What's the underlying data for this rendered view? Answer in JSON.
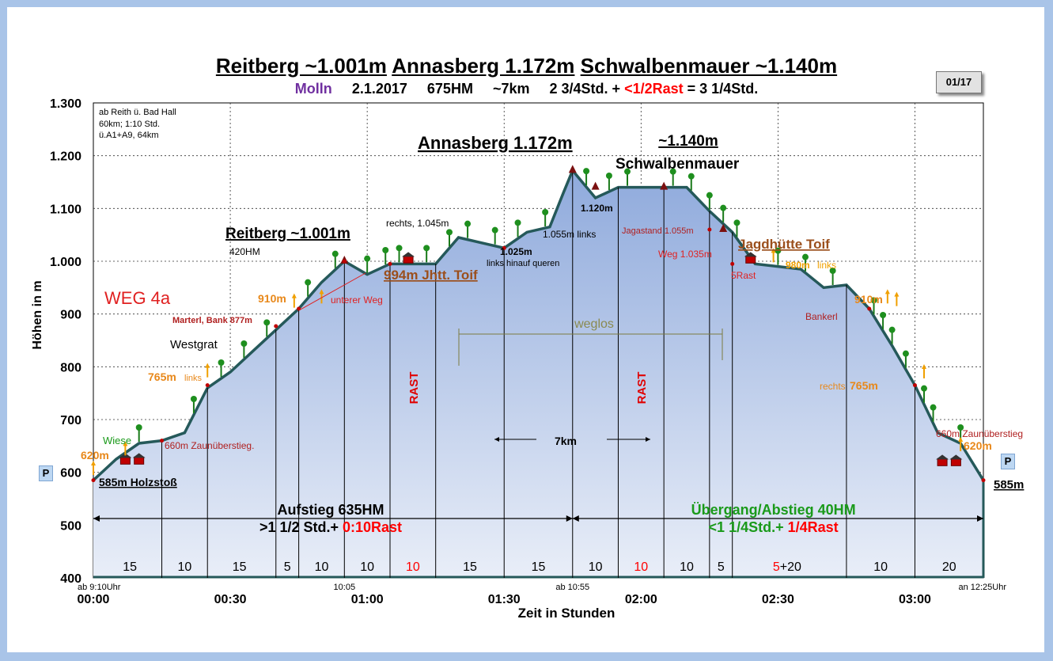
{
  "header": {
    "title_parts": [
      "Reitberg ~1.001m",
      "Annasberg 1.172m",
      "Schwalbenmauer ~1.140m"
    ],
    "place": "Molln",
    "date": "2.1.2017",
    "hm": "675HM",
    "dist": "~7km",
    "time": "2 3/4Std. +",
    "rest": "<1/2Rast",
    "total": "= 3 1/4Std.",
    "page": "01/17",
    "parking": "P",
    "title_color": "#000000",
    "place_color": "#7030a0",
    "rest_color": "#ff0000"
  },
  "chart_data": {
    "type": "area",
    "title": "",
    "xlabel": "Zeit in Stunden",
    "ylabel": "Höhen in m",
    "xlim": [
      0,
      195
    ],
    "ylim": [
      400,
      1300
    ],
    "grid": true,
    "xticks": [
      {
        "v": 0,
        "label": "00:00"
      },
      {
        "v": 30,
        "label": "00:30"
      },
      {
        "v": 60,
        "label": "01:00"
      },
      {
        "v": 90,
        "label": "01:30"
      },
      {
        "v": 120,
        "label": "02:00"
      },
      {
        "v": 150,
        "label": "02:30"
      },
      {
        "v": 180,
        "label": "03:00"
      }
    ],
    "yticks": [
      {
        "v": 400,
        "label": "400"
      },
      {
        "v": 500,
        "label": "500"
      },
      {
        "v": 600,
        "label": "600"
      },
      {
        "v": 700,
        "label": "700"
      },
      {
        "v": 800,
        "label": "800"
      },
      {
        "v": 900,
        "label": "900"
      },
      {
        "v": 1000,
        "label": "1.000"
      },
      {
        "v": 1100,
        "label": "1.100"
      },
      {
        "v": 1200,
        "label": "1.200"
      },
      {
        "v": 1300,
        "label": "1.300"
      }
    ],
    "profile": {
      "x": [
        0,
        5,
        10,
        15,
        20,
        25,
        30,
        35,
        40,
        45,
        50,
        55,
        60,
        65,
        70,
        75,
        80,
        85,
        90,
        95,
        100,
        103,
        105,
        110,
        115,
        120,
        125,
        130,
        135,
        140,
        145,
        150,
        155,
        160,
        165,
        170,
        175,
        180,
        185,
        190,
        195
      ],
      "y": [
        585,
        625,
        655,
        660,
        675,
        760,
        790,
        830,
        870,
        910,
        960,
        1000,
        975,
        995,
        995,
        995,
        1045,
        1035,
        1025,
        1055,
        1065,
        1130,
        1172,
        1120,
        1140,
        1140,
        1140,
        1140,
        1095,
        1055,
        995,
        990,
        985,
        950,
        955,
        910,
        840,
        765,
        675,
        655,
        585
      ]
    },
    "vlines": [
      15,
      25,
      40,
      45,
      55,
      65,
      75,
      90,
      105,
      115,
      125,
      135,
      140,
      165,
      180
    ],
    "segment_times": [
      {
        "x": 8,
        "label": "15",
        "color": "#000000"
      },
      {
        "x": 20,
        "label": "10",
        "color": "#000000"
      },
      {
        "x": 32,
        "label": "15",
        "color": "#000000"
      },
      {
        "x": 42.5,
        "label": "5",
        "color": "#000000"
      },
      {
        "x": 50,
        "label": "10",
        "color": "#000000"
      },
      {
        "x": 60,
        "label": "10",
        "color": "#000000"
      },
      {
        "x": 70,
        "label": "10",
        "color": "#ff0000"
      },
      {
        "x": 82.5,
        "label": "15",
        "color": "#000000"
      },
      {
        "x": 97.5,
        "label": "15",
        "color": "#000000"
      },
      {
        "x": 110,
        "label": "10",
        "color": "#000000"
      },
      {
        "x": 120,
        "label": "10",
        "color": "#ff0000"
      },
      {
        "x": 130,
        "label": "10",
        "color": "#000000"
      },
      {
        "x": 137.5,
        "label": "5",
        "color": "#000000"
      },
      {
        "x": 172.5,
        "label": "10",
        "color": "#000000"
      },
      {
        "x": 187.5,
        "label": "20",
        "color": "#000000"
      }
    ],
    "rest_plus": {
      "rest": "5",
      "plus": "+20",
      "x": 152
    },
    "time_marks": [
      {
        "x": 0,
        "label": "ab 9:10Uhr"
      },
      {
        "x": 55,
        "label": "10:05"
      },
      {
        "x": 105,
        "label": "ab 10:55"
      },
      {
        "x": 195,
        "label": "an 12:25Uhr"
      }
    ],
    "summary_left": {
      "l1": "Aufstieg 635HM",
      "l2a": ">1 1/2 Std.+ ",
      "l2b": "0:10Rast"
    },
    "summary_right": {
      "l1": "Übergang/Abstieg 40HM",
      "l2a": "<1 1/4Std.+ ",
      "l2b": "1/4Rast"
    },
    "distance": "7km",
    "weglos": "weglos",
    "rast_labels": [
      "RAST",
      "RAST"
    ],
    "start_note": [
      "ab Reith ü. Bad Hall",
      "60km; 1:10 Std.",
      "ü.A1+A9,  64km"
    ],
    "route": "WEG 4a",
    "labels": {
      "reitberg": "Reitberg ~1.001m",
      "reitberg_hm": "420HM",
      "annasberg": "Annasberg 1.172m",
      "schwalben_h": "~1.140m",
      "schwalben": "Schwalbenmauer",
      "rechts": "rechts, 1.045m",
      "m1025": "1.025m",
      "links_hinauf": "links hinauf queren",
      "m1055": "1.055m links",
      "m1120": "1.120m",
      "jagastand": "Jagastand 1.055m",
      "weg1035": "Weg 1.035m",
      "jagdhuette": "Jagdhütte Toif",
      "m980": "980m",
      "links": "links",
      "fuenfrast": "5Rast",
      "m994": "994m Jhtt. Toif",
      "unterer": "unterer Weg",
      "m910": "910m",
      "marterl": "Marterl, Bank 877m",
      "westgrat": "Westgrat",
      "m765": "765m",
      "m660": "660m Zaunüberstieg.",
      "wiese": "Wiese",
      "m620": "620m",
      "holzstoss": "585m Holzstoß",
      "bankerl": "Bankerl",
      "m910r": "910m",
      "rechts765": "rechts",
      "m765r": "765m",
      "m660r": "660m Zaunüberstieg",
      "m620r": "620m",
      "m585r": "585m"
    }
  }
}
